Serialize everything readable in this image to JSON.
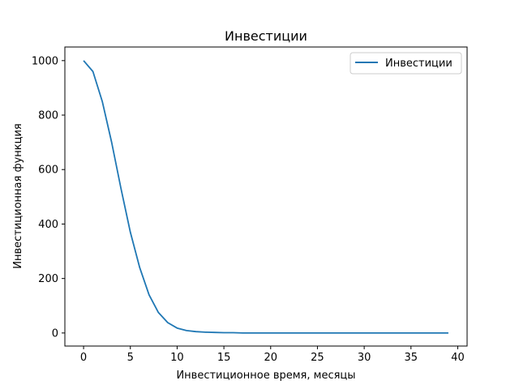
{
  "chart_data": {
    "type": "line",
    "title": "Инвестиции",
    "xlabel": "Инвестиционное время, месяцы",
    "ylabel": "Инвестиционная функция",
    "xlim": [
      -2,
      41
    ],
    "ylim": [
      -48,
      1050
    ],
    "xticks": [
      0,
      5,
      10,
      15,
      20,
      25,
      30,
      35,
      40
    ],
    "yticks": [
      0,
      200,
      400,
      600,
      800,
      1000
    ],
    "grid": false,
    "legend_position": "top-right",
    "series": [
      {
        "name": "Инвестиции",
        "color": "#1f77b4",
        "x": [
          0,
          1,
          2,
          3,
          4,
          5,
          6,
          7,
          8,
          9,
          10,
          11,
          12,
          13,
          14,
          15,
          16,
          17,
          18,
          19,
          20,
          21,
          22,
          23,
          24,
          25,
          26,
          27,
          28,
          29,
          30,
          31,
          32,
          33,
          34,
          35,
          36,
          37,
          38,
          39
        ],
        "y": [
          1000,
          960,
          850,
          700,
          530,
          370,
          240,
          140,
          75,
          38,
          18,
          9,
          5,
          3,
          2,
          1,
          1,
          0,
          0,
          0,
          0,
          0,
          0,
          0,
          0,
          0,
          0,
          0,
          0,
          0,
          0,
          0,
          0,
          0,
          0,
          0,
          0,
          0,
          0,
          0
        ]
      }
    ]
  }
}
